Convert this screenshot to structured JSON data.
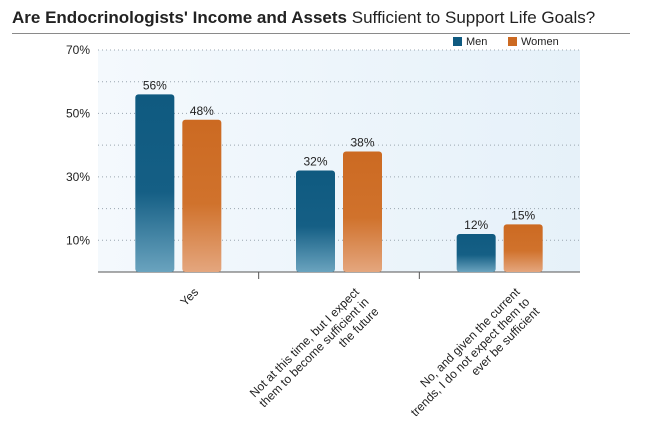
{
  "title_bold": "Are Endocrinologists' Income and Assets",
  "title_rest": "Sufficient to Support Life Goals?",
  "colors": {
    "men": "#0f5a80",
    "women": "#cc6a22"
  },
  "chart_data": {
    "type": "bar",
    "title": "Are Endocrinologists' Income and Assets Sufficient to Support Life Goals?",
    "categories": [
      {
        "lines": [
          "Yes"
        ]
      },
      {
        "lines": [
          "Not at this time, but I expect",
          "them to become sufficient in",
          "the future"
        ]
      },
      {
        "lines": [
          "No, and given the current",
          "trends, I do not expect them to",
          "ever be sufficient"
        ]
      }
    ],
    "series": [
      {
        "name": "Men",
        "values": [
          56,
          32,
          12
        ],
        "labels": [
          "56%",
          "32%",
          "12%"
        ]
      },
      {
        "name": "Women",
        "values": [
          48,
          38,
          15
        ],
        "labels": [
          "48%",
          "38%",
          "15%"
        ]
      }
    ],
    "yticks": [
      {
        "value": 10,
        "label": "10%"
      },
      {
        "value": 30,
        "label": "30%"
      },
      {
        "value": 50,
        "label": "50%"
      },
      {
        "value": 70,
        "label": "70%"
      }
    ],
    "ylim": [
      0,
      70
    ],
    "xlabel": "",
    "ylabel": "",
    "legend_position": "top-right"
  }
}
